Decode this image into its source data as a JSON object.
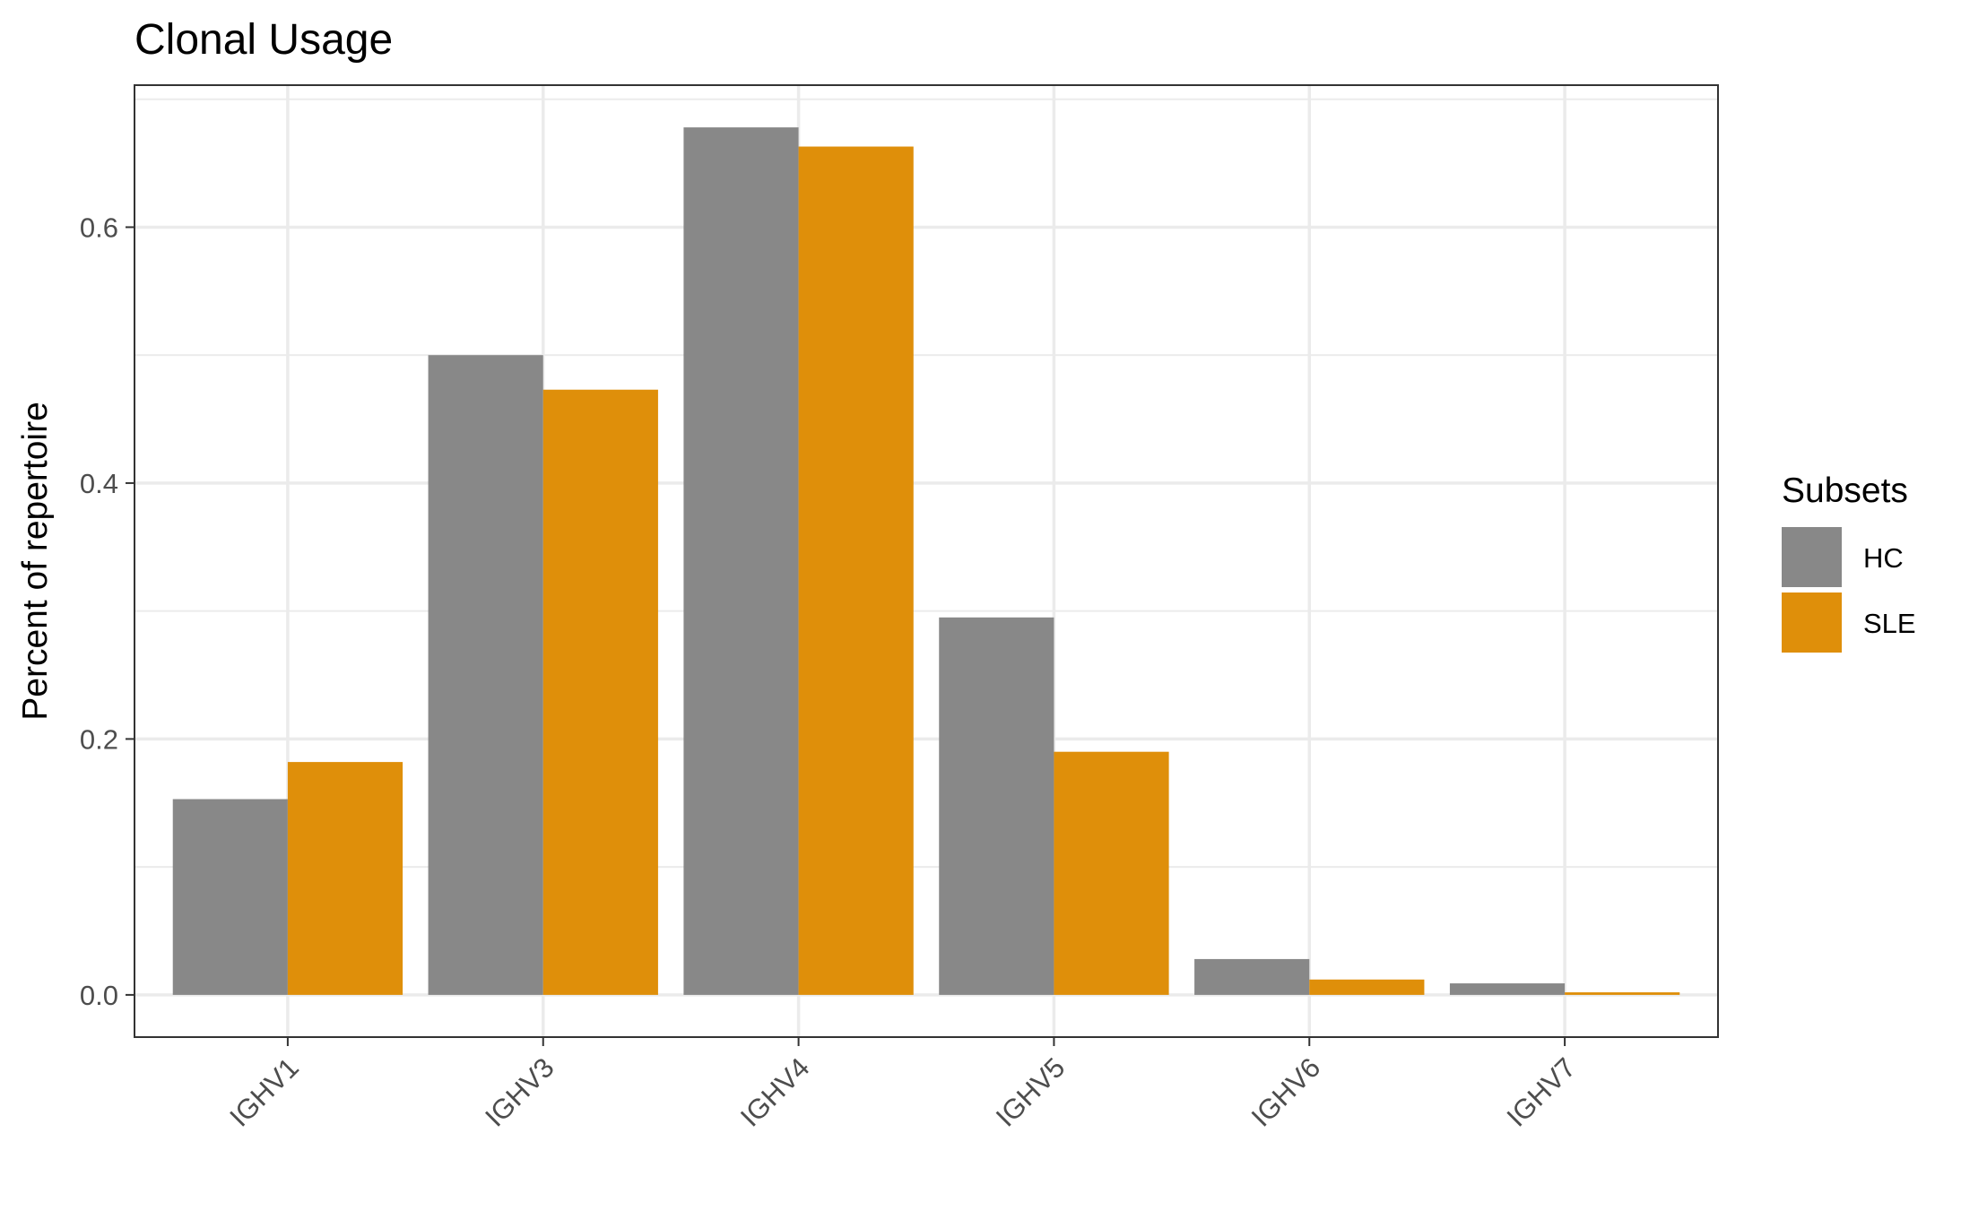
{
  "chart_data": {
    "type": "bar",
    "title": "Clonal Usage",
    "xlabel": "",
    "ylabel": "Percent of repertoire",
    "categories": [
      "IGHV1",
      "IGHV3",
      "IGHV4",
      "IGHV5",
      "IGHV6",
      "IGHV7"
    ],
    "series": [
      {
        "name": "HC",
        "color": "#888888",
        "values": [
          0.153,
          0.5,
          0.678,
          0.295,
          0.028,
          0.009
        ]
      },
      {
        "name": "SLE",
        "color": "#df8f0a",
        "values": [
          0.182,
          0.473,
          0.663,
          0.19,
          0.012,
          0.002
        ]
      }
    ],
    "ylim": [
      -0.033,
      0.711
    ],
    "yticks": [
      0.0,
      0.2,
      0.4,
      0.6
    ],
    "ytick_labels": [
      "0.0",
      "0.2",
      "0.4",
      "0.6"
    ],
    "grid": true,
    "legend": {
      "title": "Subsets",
      "position": "right"
    }
  }
}
